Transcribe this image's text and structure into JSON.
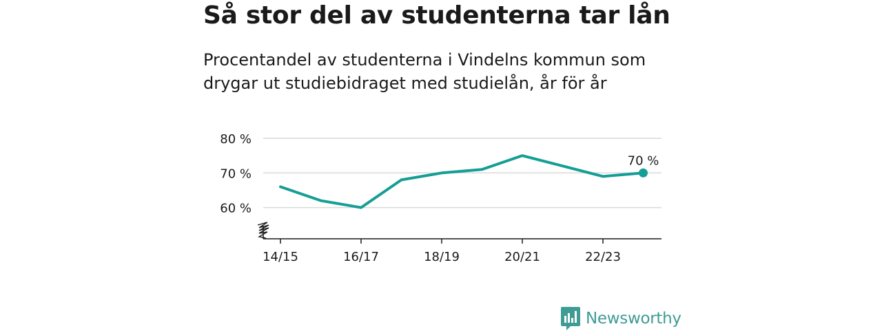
{
  "title": "Så stor del av studenterna tar lån",
  "subtitle": "Procentandel av studenterna i Vindelns kommun som drygar ut studiebidraget med studielån, år för år",
  "brand": {
    "name": "Newsworthy",
    "icon": "bar-chart-speech-bubble-icon",
    "color": "#3f9c94"
  },
  "chart_data": {
    "type": "line",
    "title": "Så stor del av studenterna tar lån",
    "subtitle": "Procentandel av studenterna i Vindelns kommun som drygar ut studiebidraget med studielån, år för år",
    "x": [
      "14/15",
      "15/16",
      "16/17",
      "17/18",
      "18/19",
      "19/20",
      "20/21",
      "21/22",
      "22/23",
      "23/24"
    ],
    "x_tick_labels": [
      "14/15",
      "16/17",
      "18/19",
      "20/21",
      "22/23"
    ],
    "series": [
      {
        "values": [
          66,
          62,
          60,
          68,
          70,
          71,
          75,
          72,
          69,
          70
        ],
        "color": "#159e95"
      }
    ],
    "ylim": [
      51,
      80
    ],
    "y_ticks": [
      60,
      70,
      80
    ],
    "y_tick_labels": [
      "60 %",
      "70 %",
      "80 %"
    ],
    "y_axis_break": true,
    "grid": true,
    "end_label": "70 %",
    "xlabel": "",
    "ylabel": ""
  }
}
